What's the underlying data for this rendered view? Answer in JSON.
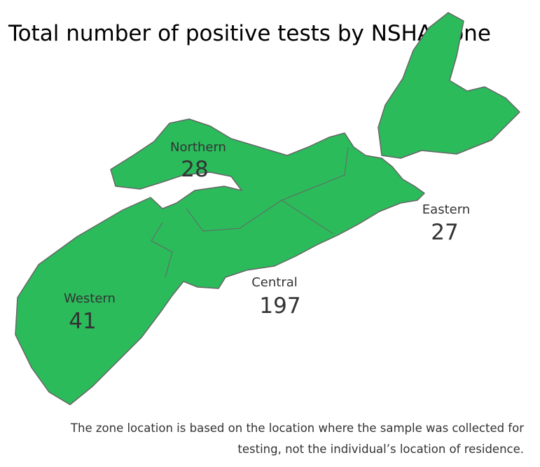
{
  "title": "Total number of positive tests by NSHA zone",
  "zones": [
    {
      "name": "Northern",
      "value": 28
    },
    {
      "name": "Eastern",
      "value": 27
    },
    {
      "name": "Central",
      "value": 197
    },
    {
      "name": "Western",
      "value": 41
    }
  ],
  "note": [
    "The zone location is based on the location where the sample was collected for",
    "testing, not the individual’s location of residence."
  ]
}
